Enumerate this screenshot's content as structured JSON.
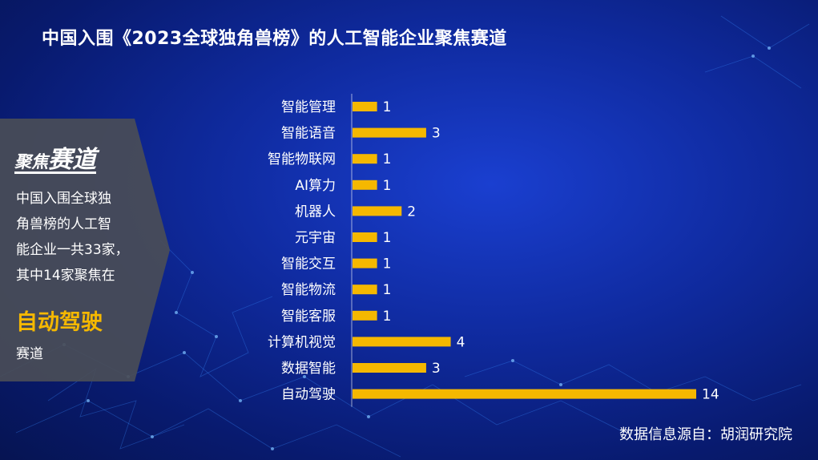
{
  "title": "中国入围《2023全球独角兽榜》的人工智能企业聚焦赛道",
  "side_panel": {
    "heading_part1": "聚焦",
    "heading_part2": "赛道",
    "body_lines": [
      "中国入围全球独",
      "角兽榜的人工智",
      "能企业一共33家，",
      "其中14家聚焦在"
    ],
    "highlight": "自动驾驶",
    "tail": "赛道"
  },
  "source": "数据信息源自：胡润研究院",
  "colors": {
    "bar": "#f5b800",
    "accent": "#f5b800",
    "background": "#0f2a9e"
  },
  "chart_data": {
    "type": "bar",
    "orientation": "horizontal",
    "categories": [
      "智能管理",
      "智能语音",
      "智能物联网",
      "AI算力",
      "机器人",
      "元宇宙",
      "智能交互",
      "智能物流",
      "智能客服",
      "计算机视觉",
      "数据智能",
      "自动驾驶"
    ],
    "values": [
      1,
      3,
      1,
      1,
      2,
      1,
      1,
      1,
      1,
      4,
      3,
      14
    ],
    "xlim": [
      0,
      14
    ],
    "grid": false,
    "data_labels": true
  }
}
